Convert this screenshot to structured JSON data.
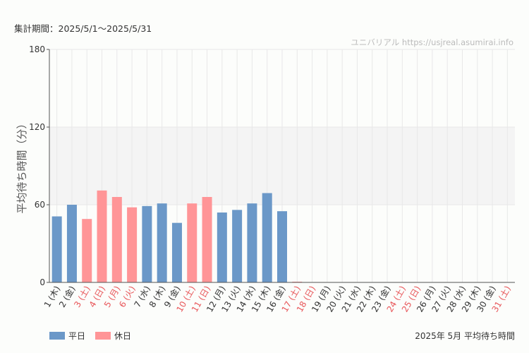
{
  "header": {
    "period": "集計期間：2025/5/1～2025/5/31",
    "watermark": "ユニバリアル https://usjreal.asumirai.info"
  },
  "legend": {
    "weekday_label": "平日",
    "holiday_label": "休日"
  },
  "footer": {
    "title": "2025年 5月 平均待ち時間"
  },
  "colors": {
    "weekday": "#6b98c8",
    "holiday": "#ff9597",
    "holiday_text": "#e8575a",
    "band": "#f4f4f4",
    "grid": "#e8e8e8"
  },
  "chart_data": {
    "type": "bar",
    "ylabel": "平均待ち時間（分）",
    "ylim": [
      0,
      180
    ],
    "yticks": [
      0,
      60,
      120,
      180
    ],
    "band": [
      60,
      120
    ],
    "categories": [
      "1 (木)",
      "2 (金)",
      "3 (土)",
      "4 (日)",
      "5 (月)",
      "6 (火)",
      "7 (水)",
      "8 (木)",
      "9 (金)",
      "10 (土)",
      "11 (日)",
      "12 (月)",
      "13 (火)",
      "14 (水)",
      "15 (木)",
      "16 (金)",
      "17 (土)",
      "18 (日)",
      "19 (月)",
      "20 (火)",
      "21 (水)",
      "22 (木)",
      "23 (金)",
      "24 (土)",
      "25 (日)",
      "26 (月)",
      "27 (火)",
      "28 (水)",
      "29 (木)",
      "30 (金)",
      "31 (土)"
    ],
    "holiday": [
      false,
      false,
      true,
      true,
      true,
      true,
      false,
      false,
      false,
      true,
      true,
      false,
      false,
      false,
      false,
      false,
      true,
      true,
      false,
      false,
      false,
      false,
      false,
      true,
      true,
      false,
      false,
      false,
      false,
      false,
      true
    ],
    "values": [
      51,
      60,
      49,
      71,
      66,
      58,
      59,
      61,
      46,
      61,
      66,
      54,
      56,
      61,
      69,
      55,
      0,
      null,
      null,
      null,
      null,
      null,
      null,
      null,
      null,
      null,
      null,
      null,
      null,
      null,
      null
    ]
  }
}
